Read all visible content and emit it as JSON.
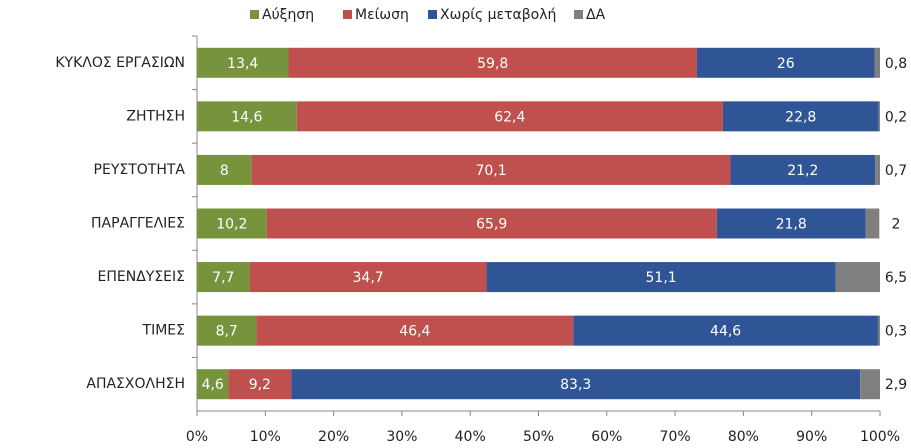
{
  "chart_data": {
    "type": "stacked-bar-horizontal",
    "categories": [
      "ΚΥΚΛΟΣ ΕΡΓΑΣΙΩΝ",
      "ΖΗΤΗΣΗ",
      "ΡΕΥΣΤΟΤΗΤΑ",
      "ΠΑΡΑΓΓΕΛΙΕΣ",
      "ΕΠΕΝΔΥΣΕΙΣ",
      "ΤΙΜΕΣ",
      "ΑΠΑΣΧΟΛΗΣΗ"
    ],
    "series": [
      {
        "name": "Αύξηση",
        "color": "#77933c",
        "values": [
          13.4,
          14.6,
          8,
          10.2,
          7.7,
          8.7,
          4.6
        ],
        "value_labels": [
          "13,4",
          "14,6",
          "8",
          "10,2",
          "7,7",
          "8,7",
          "4,6"
        ]
      },
      {
        "name": "Μείωση",
        "color": "#c0504d",
        "values": [
          59.8,
          62.4,
          70.1,
          65.9,
          34.7,
          46.4,
          9.2
        ],
        "value_labels": [
          "59,8",
          "62,4",
          "70,1",
          "65,9",
          "34,7",
          "46,4",
          "9,2"
        ]
      },
      {
        "name": "Χωρίς μεταβολή",
        "color": "#2f5597",
        "values": [
          26,
          22.8,
          21.2,
          21.8,
          51.1,
          44.6,
          83.3
        ],
        "value_labels": [
          "26",
          "22,8",
          "21,2",
          "21,8",
          "51,1",
          "44,6",
          "83,3"
        ]
      },
      {
        "name": "ΔΑ",
        "color": "#7f7f7f",
        "values": [
          0.8,
          0.2,
          0.7,
          2,
          6.5,
          0.3,
          2.9
        ],
        "value_labels": [
          "0,8",
          "0,2",
          "0,7",
          "2",
          "6,5",
          "0,3",
          "2,9"
        ]
      }
    ],
    "xlim": [
      0,
      100
    ],
    "xticks": [
      {
        "value": 0,
        "label": "0%"
      },
      {
        "value": 10,
        "label": "10%"
      },
      {
        "value": 20,
        "label": "20%"
      },
      {
        "value": 30,
        "label": "30%"
      },
      {
        "value": 40,
        "label": "40%"
      },
      {
        "value": 50,
        "label": "50%"
      },
      {
        "value": 60,
        "label": "60%"
      },
      {
        "value": 70,
        "label": "70%"
      },
      {
        "value": 80,
        "label": "80%"
      },
      {
        "value": 90,
        "label": "90%"
      },
      {
        "value": 100,
        "label": "100%"
      }
    ],
    "legend": "top"
  }
}
